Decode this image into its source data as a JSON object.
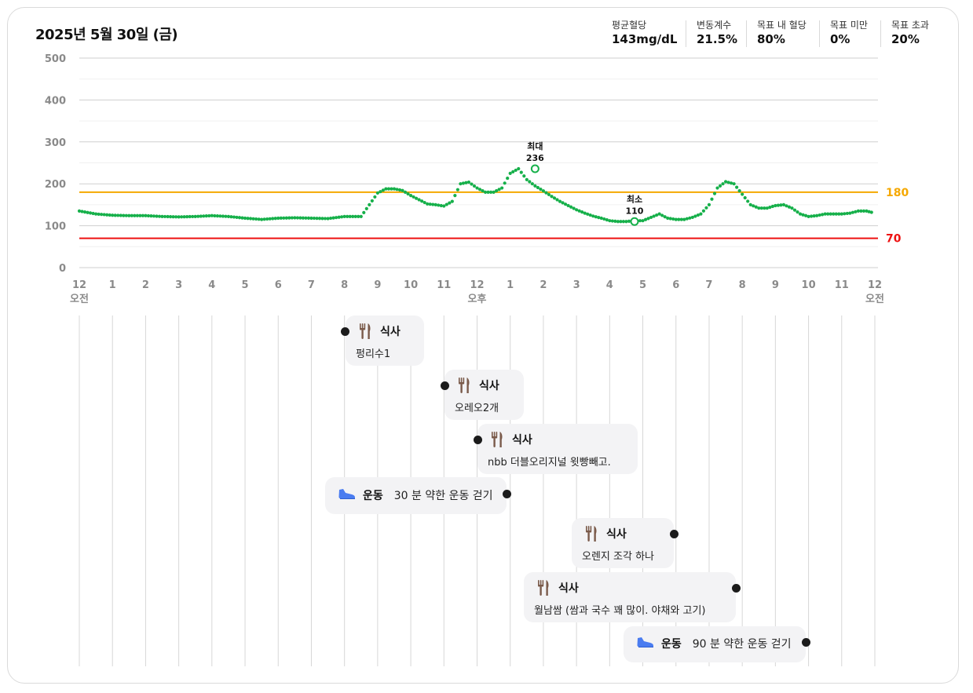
{
  "header": {
    "date_title": "2025년 5월 30일 (금)",
    "stats": [
      {
        "label": "평균혈당",
        "value": "143mg/dL"
      },
      {
        "label": "변동계수",
        "value": "21.5%"
      },
      {
        "label": "목표 내 혈당",
        "value": "80%"
      },
      {
        "label": "목표 미만",
        "value": "0%"
      },
      {
        "label": "목표 초과",
        "value": "20%"
      }
    ]
  },
  "chart_data": {
    "type": "scatter",
    "title": "",
    "xlabel": "",
    "ylabel": "",
    "ylim": [
      0,
      500
    ],
    "xlim": [
      0,
      24
    ],
    "y_ticks": [
      "0",
      "100",
      "200",
      "300",
      "400",
      "500"
    ],
    "x_ticks": [
      "12",
      "1",
      "2",
      "3",
      "4",
      "5",
      "6",
      "7",
      "8",
      "9",
      "10",
      "11",
      "12",
      "1",
      "2",
      "3",
      "4",
      "5",
      "6",
      "7",
      "8",
      "9",
      "10",
      "11",
      "12"
    ],
    "x_period_labels": [
      {
        "hour": 0,
        "text": "오전"
      },
      {
        "hour": 12,
        "text": "오후"
      },
      {
        "hour": 24,
        "text": "오전"
      }
    ],
    "grid": true,
    "thresholds": [
      {
        "value": 180,
        "label": "180",
        "color": "#f5a800"
      },
      {
        "value": 70,
        "label": "70",
        "color": "#ee1111"
      }
    ],
    "series": [
      {
        "color": "#16b04a",
        "x": [
          0,
          0.5,
          1,
          1.5,
          2,
          2.5,
          3,
          3.5,
          4,
          4.5,
          5,
          5.5,
          6,
          6.5,
          7,
          7.5,
          8,
          8.5,
          8.75,
          9,
          9.25,
          9.5,
          9.75,
          10,
          10.25,
          10.5,
          10.75,
          11,
          11.25,
          11.5,
          11.75,
          12,
          12.25,
          12.5,
          12.75,
          13,
          13.25,
          13.5,
          13.75,
          14,
          14.25,
          14.5,
          14.75,
          15,
          15.25,
          15.5,
          15.75,
          16,
          16.25,
          16.5,
          16.75,
          17,
          17.25,
          17.5,
          17.75,
          18,
          18.25,
          18.5,
          18.75,
          19,
          19.25,
          19.5,
          19.75,
          20,
          20.25,
          20.5,
          20.75,
          21,
          21.25,
          21.5,
          21.75,
          22,
          22.25,
          22.5,
          22.75,
          23,
          23.25,
          23.5,
          23.75,
          23.9
        ],
        "y": [
          135,
          128,
          125,
          124,
          124,
          122,
          121,
          122,
          124,
          122,
          118,
          115,
          118,
          119,
          118,
          117,
          122,
          122,
          150,
          178,
          188,
          188,
          184,
          172,
          162,
          152,
          150,
          147,
          158,
          200,
          204,
          190,
          180,
          180,
          190,
          225,
          236,
          210,
          195,
          183,
          170,
          158,
          148,
          138,
          130,
          123,
          118,
          112,
          110,
          110,
          112,
          112,
          120,
          128,
          118,
          115,
          115,
          120,
          128,
          150,
          190,
          205,
          200,
          175,
          150,
          142,
          142,
          148,
          150,
          142,
          128,
          122,
          124,
          128,
          128,
          128,
          130,
          135,
          135,
          132
        ]
      }
    ],
    "annotations": [
      {
        "label": "최대",
        "value_label": "236",
        "x": 13.75,
        "y": 236
      },
      {
        "label": "최소",
        "value_label": "110",
        "x": 16.75,
        "y": 110
      }
    ]
  },
  "events": [
    {
      "type": "meal",
      "title": "식사",
      "text": "펑리수1"
    },
    {
      "type": "meal",
      "title": "식사",
      "text": "오레오2개"
    },
    {
      "type": "meal",
      "title": "식사",
      "text": "nbb 더블오리지널 윗빵빼고."
    },
    {
      "type": "exercise",
      "title": "운동",
      "text": "30 분 약한 운동 걷기"
    },
    {
      "type": "meal",
      "title": "식사",
      "text": "오렌지 조각 하나"
    },
    {
      "type": "meal",
      "title": "식사",
      "text": "월남쌈 (쌈과 국수 꽤 많이. 야채와 고기)"
    },
    {
      "type": "exercise",
      "title": "운동",
      "text": "90 분 약한 운동 걷기"
    }
  ],
  "icons": {
    "meal": "fork-knife-icon",
    "exercise": "sneaker-icon"
  },
  "colors": {
    "glucose": "#16b04a",
    "high": "#f5a800",
    "low": "#ee1111",
    "event_bg": "#f3f3f5"
  }
}
